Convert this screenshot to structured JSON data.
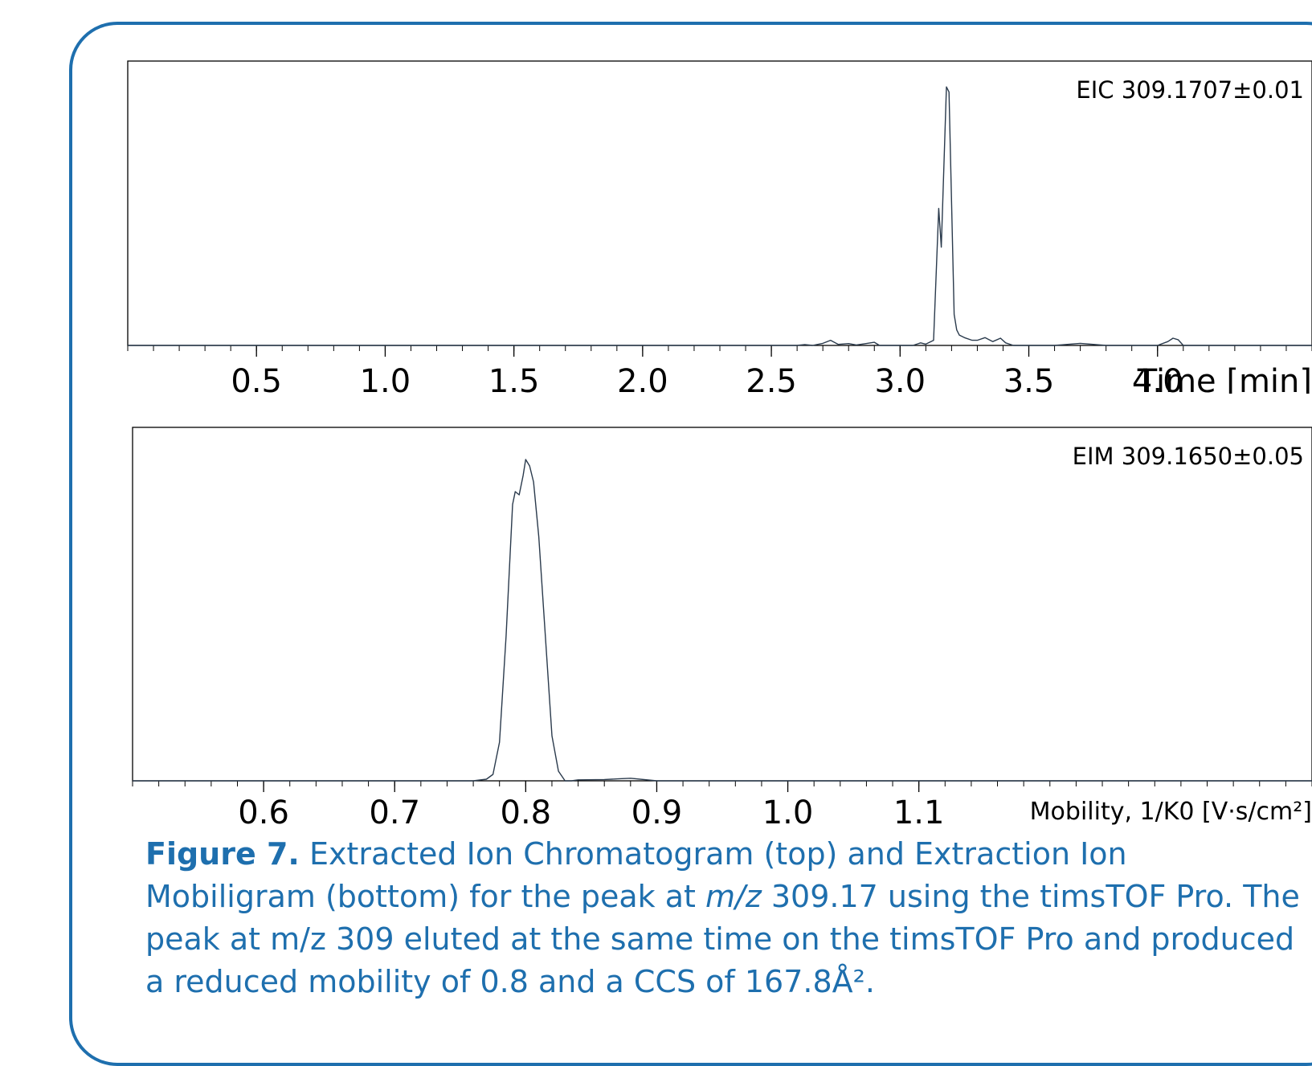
{
  "colors": {
    "frame": "#1e6fae",
    "trace": "#2a3a4c",
    "caption": "#1e6fae"
  },
  "chart_data": [
    {
      "type": "line",
      "title": "EIC 309.1707±0.01",
      "xlabel": "Time [min]",
      "ylabel": "",
      "xlim": [
        0.0,
        4.6
      ],
      "ylim": [
        0,
        1.1
      ],
      "xticks": [
        "0.5",
        "1.0",
        "1.5",
        "2.0",
        "2.5",
        "3.0",
        "3.5",
        "4.0"
      ],
      "grid": false,
      "series": [
        {
          "x": [
            0.0,
            2.6,
            2.63,
            2.66,
            2.7,
            2.73,
            2.76,
            2.8,
            2.83,
            2.86,
            2.9,
            2.92,
            3.05,
            3.08,
            3.1,
            3.13,
            3.15,
            3.16,
            3.18,
            3.19,
            3.2,
            3.21,
            3.22,
            3.23,
            3.25,
            3.28,
            3.3,
            3.33,
            3.36,
            3.39,
            3.41,
            3.44,
            3.47,
            3.6,
            3.7,
            3.8,
            3.9,
            4.0,
            4.04,
            4.06,
            4.08,
            4.1,
            4.6
          ],
          "y": [
            0,
            0,
            0.003,
            0,
            0.008,
            0.02,
            0.004,
            0.007,
            0.002,
            0.006,
            0.012,
            0,
            0,
            0.01,
            0.005,
            0.02,
            0.53,
            0.38,
            1.0,
            0.98,
            0.55,
            0.12,
            0.06,
            0.04,
            0.03,
            0.02,
            0.02,
            0.03,
            0.015,
            0.028,
            0.01,
            0.0,
            0.0,
            0.0,
            0.008,
            0.0,
            0.0,
            0.0,
            0.015,
            0.028,
            0.022,
            0.0,
            0.0
          ]
        }
      ]
    },
    {
      "type": "line",
      "title": "EIM 309.1650±0.05",
      "xlabel": "Mobility, 1/K0 [V·s/cm²]",
      "ylabel": "",
      "xlim": [
        0.5,
        1.4
      ],
      "ylim": [
        0,
        1.1
      ],
      "xticks": [
        "0.6",
        "0.7",
        "0.8",
        "0.9",
        "1.0",
        "1.1"
      ],
      "grid": false,
      "series": [
        {
          "x": [
            0.5,
            0.76,
            0.77,
            0.775,
            0.78,
            0.785,
            0.79,
            0.792,
            0.795,
            0.798,
            0.8,
            0.803,
            0.806,
            0.81,
            0.815,
            0.82,
            0.825,
            0.83,
            0.835,
            0.84,
            0.86,
            0.87,
            0.88,
            0.9,
            1.2,
            1.4
          ],
          "y": [
            0,
            0,
            0.005,
            0.02,
            0.12,
            0.45,
            0.86,
            0.9,
            0.89,
            0.95,
            1.0,
            0.98,
            0.93,
            0.76,
            0.45,
            0.14,
            0.03,
            0.0,
            0.0,
            0.003,
            0.004,
            0.006,
            0.008,
            0.0,
            0.0,
            0.0
          ]
        }
      ]
    }
  ],
  "caption": {
    "label": "Figure 7.",
    "t1": "  Extracted Ion Chromatogram (top) and Extraction Ion Mobiligram (bottom) for the peak at ",
    "t2": "m/z",
    "t3": " 309.17 using the timsTOF Pro.  The peak at m/z 309 eluted at the same time on the timsTOF Pro and produced a reduced mobility of 0.8 and a CCS of 167.8Å²."
  }
}
